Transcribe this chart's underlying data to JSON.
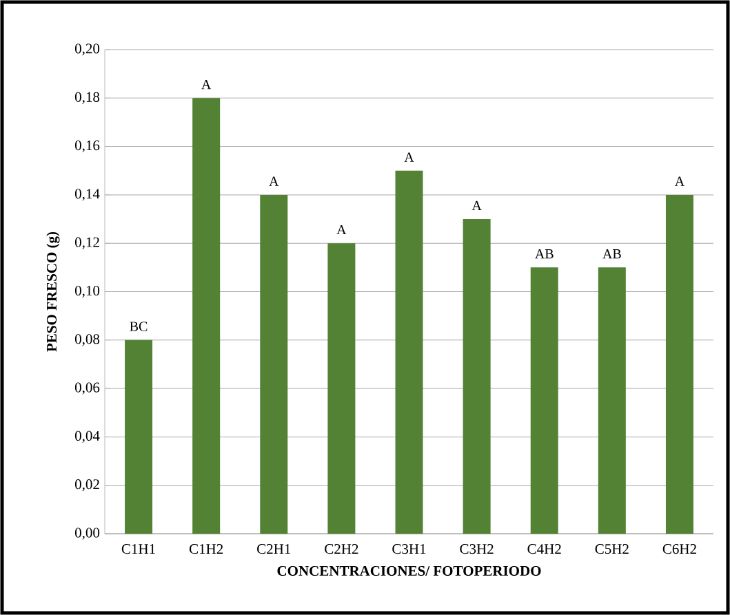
{
  "chart_data": {
    "type": "bar",
    "xlabel": "CONCENTRACIONES/ FOTOPERIODO",
    "ylabel": "PESO FRESCO (g)",
    "categories": [
      "C1H1",
      "C1H2",
      "C2H1",
      "C2H2",
      "C3H1",
      "C3H2",
      "C4H2",
      "C5H2",
      "C6H2"
    ],
    "values": [
      0.08,
      0.18,
      0.14,
      0.12,
      0.15,
      0.13,
      0.11,
      0.11,
      0.14
    ],
    "color": "#548235",
    "ylim": [
      0,
      0.2
    ],
    "yticks": [
      {
        "value": 0,
        "label": "0,00"
      },
      {
        "value": 0.02,
        "label": "0,02"
      },
      {
        "value": 0.04,
        "label": "0,04"
      },
      {
        "value": 0.06,
        "label": "0,06"
      },
      {
        "value": 0.08,
        "label": "0,08"
      },
      {
        "value": 0.1,
        "label": "0,10"
      },
      {
        "value": 0.12,
        "label": "0,12"
      },
      {
        "value": 0.14,
        "label": "0,14"
      },
      {
        "value": 0.16,
        "label": "0,16"
      },
      {
        "value": 0.18,
        "label": "0,18"
      },
      {
        "value": 0.2,
        "label": "0,20"
      }
    ],
    "grid": "y",
    "annotations": [
      {
        "text": "BC",
        "x": "C1H1",
        "y": 0.08
      },
      {
        "text": "A",
        "x": "C1H2",
        "y": 0.18
      },
      {
        "text": "A",
        "x": "C2H1",
        "y": 0.14
      },
      {
        "text": "A",
        "x": "C2H2",
        "y": 0.12
      },
      {
        "text": "A",
        "x": "C3H1",
        "y": 0.15
      },
      {
        "text": "A",
        "x": "C3H2",
        "y": 0.13
      },
      {
        "text": "AB",
        "x": "C4H2",
        "y": 0.11
      },
      {
        "text": "AB",
        "x": "C5H2",
        "y": 0.11
      },
      {
        "text": "A",
        "x": "C6H2",
        "y": 0.14
      }
    ]
  }
}
